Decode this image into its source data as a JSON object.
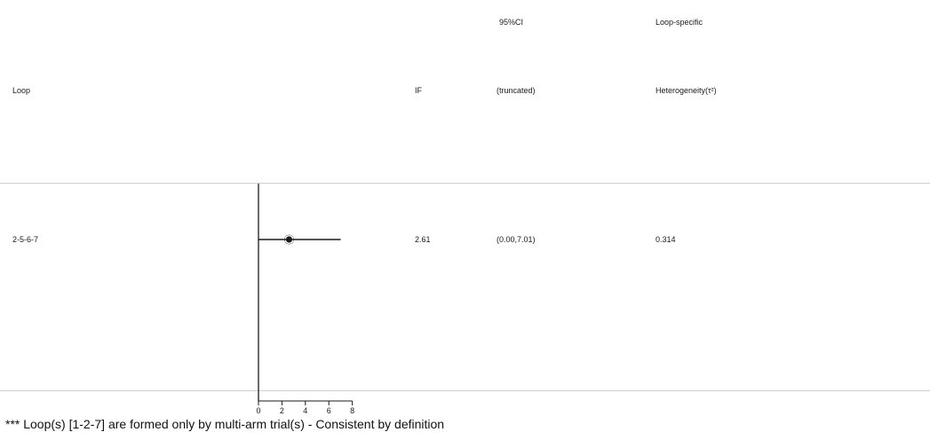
{
  "headers": {
    "ci_top": "95%CI",
    "het_top": "Loop-specific",
    "loop": "Loop",
    "if": "IF",
    "ci_bottom": "(truncated)",
    "het_bottom": "Heterogeneity(τ²)"
  },
  "rows": [
    {
      "loop": "2-5-6-7",
      "if_value": "2.61",
      "ci": "(0.00,7.01)",
      "heterogeneity": "0.314"
    }
  ],
  "footnote": "*** Loop(s)  [1-2-7] are formed only by multi-arm trial(s) - Consistent by definition",
  "chart_data": {
    "type": "scatter",
    "x": [
      2.61
    ],
    "ci_lower": [
      0.0
    ],
    "ci_upper": [
      7.01
    ],
    "categories": [
      "2-5-6-7"
    ],
    "xticks": [
      0,
      2,
      4,
      6,
      8
    ],
    "xlim": [
      0,
      8
    ],
    "title": "",
    "xlabel": "",
    "ylabel": "",
    "grid": false,
    "colors": {
      "marker": "#1a1a1a",
      "line": "#1a1a1a",
      "rule": "#cfcfcf"
    }
  }
}
